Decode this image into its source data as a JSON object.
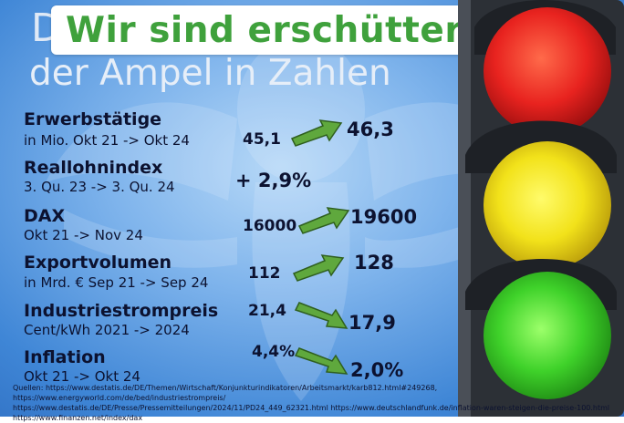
{
  "title": {
    "line1": "D",
    "line2": "der Ampel in Zahlen",
    "banner": "Wir sind erschüttert..."
  },
  "rows": [
    {
      "label": "Erwerbstätige",
      "sub": "in Mio. Okt 21 -> Okt 24",
      "old": "45,1",
      "new": "46,3",
      "direction": "up"
    },
    {
      "label": "Reallohnindex",
      "sub": "3. Qu. 23 -> 3. Qu. 24",
      "old": "+ 2,9%",
      "new": "",
      "direction": "none"
    },
    {
      "label": "DAX",
      "sub": "Okt 21 -> Nov 24",
      "old": "16000",
      "new": "19600",
      "direction": "up"
    },
    {
      "label": "Exportvolumen",
      "sub": "in Mrd. € Sep 21 -> Sep 24",
      "old": "112",
      "new": "128",
      "direction": "up"
    },
    {
      "label": "Industriestrompreis",
      "sub": "Cent/kWh 2021 -> 2024",
      "old": "21,4",
      "new": "17,9",
      "direction": "down"
    },
    {
      "label": "Inflation",
      "sub": "Okt 21 -> Okt 24",
      "old": "4,4%",
      "new": "2,0%",
      "direction": "down"
    }
  ],
  "sources": {
    "line1": "Quellen: https://www.destatis.de/DE/Themen/Wirtschaft/Konjunkturindikatoren/Arbeitsmarkt/karb812.html#249268, https://www.energyworld.com/de/bed/industriestrompreis/",
    "line2": "https://www.destatis.de/DE/Presse/Pressemitteilungen/2024/11/PD24_449_62321.html  https://www.deutschlandfunk.de/inflation-waren-steigen-die-preise-100.html",
    "line3": "https://www.finanzen.net/index/dax"
  },
  "colors": {
    "arrow_fill": "#5fa83d",
    "arrow_stroke": "#2f5f1f",
    "banner_text": "#3fa13c",
    "red_light": "#e8231f",
    "yellow_light": "#f2e21a",
    "green_light": "#3fd22a"
  },
  "icons": {
    "arrow": "green-arrow-icon",
    "traffic_light": "traffic-light-icon"
  }
}
